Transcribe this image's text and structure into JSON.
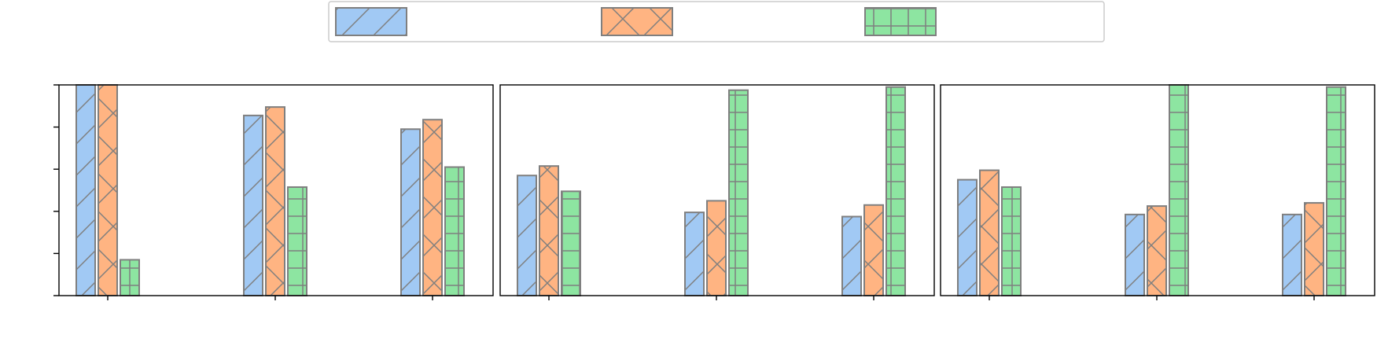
{
  "chart_data": [
    {
      "type": "bar",
      "categories": [
        "",
        "",
        ""
      ],
      "ylim": [
        0,
        1.0
      ],
      "series": [
        {
          "values": [
            1.0,
            0.855,
            0.79
          ],
          "color": "#a1c9f4",
          "hatch": "diag"
        },
        {
          "values": [
            1.0,
            0.895,
            0.835
          ],
          "color": "#ffb482",
          "hatch": "cross"
        },
        {
          "values": [
            0.17,
            0.515,
            0.61
          ],
          "color": "#8de5a1",
          "hatch": "grid"
        }
      ]
    },
    {
      "type": "bar",
      "categories": [
        "",
        "",
        ""
      ],
      "ylim": [
        0,
        1.0
      ],
      "series": [
        {
          "values": [
            0.57,
            0.395,
            0.375
          ],
          "color": "#a1c9f4",
          "hatch": "diag"
        },
        {
          "values": [
            0.615,
            0.45,
            0.43
          ],
          "color": "#ffb482",
          "hatch": "cross"
        },
        {
          "values": [
            0.495,
            0.975,
            0.99
          ],
          "color": "#8de5a1",
          "hatch": "grid"
        }
      ]
    },
    {
      "type": "bar",
      "categories": [
        "",
        "",
        ""
      ],
      "ylim": [
        0,
        1.0
      ],
      "series": [
        {
          "values": [
            0.55,
            0.385,
            0.385
          ],
          "color": "#a1c9f4",
          "hatch": "diag"
        },
        {
          "values": [
            0.595,
            0.425,
            0.44
          ],
          "color": "#ffb482",
          "hatch": "cross"
        },
        {
          "values": [
            0.515,
            1.0,
            0.99
          ],
          "color": "#8de5a1",
          "hatch": "grid"
        }
      ]
    }
  ],
  "legend": {
    "placement": "top-center",
    "entries": [
      {
        "label": "",
        "color": "#a1c9f4",
        "hatch": "diag"
      },
      {
        "label": "",
        "color": "#ffb482",
        "hatch": "cross"
      },
      {
        "label": "",
        "color": "#8de5a1",
        "hatch": "grid"
      }
    ]
  },
  "y_ticks": [
    "",
    "",
    "",
    "",
    "",
    ""
  ],
  "grid": false
}
